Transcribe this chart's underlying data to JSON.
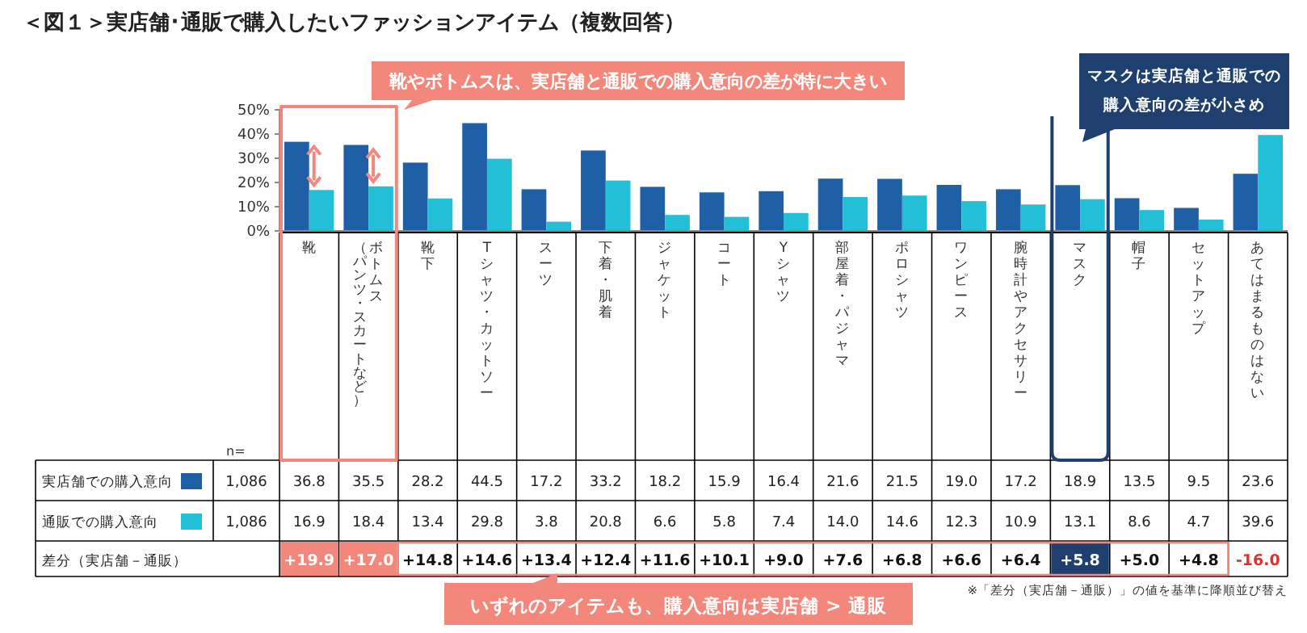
{
  "chart_data": {
    "type": "bar",
    "title": "＜図１＞実店舗･通販で購入したいファッションアイテム（複数回答）",
    "categories": [
      "靴",
      "ボトムス（パンツ・スカートなど）",
      "靴下",
      "Tシャツ・カットソー",
      "スーツ",
      "下着・肌着",
      "ジャケット",
      "コート",
      "Yシャツ",
      "部屋着・パジャマ",
      "ポロシャツ",
      "ワンピース",
      "腕時計やアクセサリー",
      "マスク",
      "帽子",
      "セットアップ",
      "あてはまるものはない"
    ],
    "series": [
      {
        "name": "実店舗での購入意向",
        "color": "#1f5fa6",
        "values": [
          36.8,
          35.5,
          28.2,
          44.5,
          17.2,
          33.2,
          18.2,
          15.9,
          16.4,
          21.6,
          21.5,
          19.0,
          17.2,
          18.9,
          13.5,
          9.5,
          23.6
        ],
        "value_labels": [
          "36.8",
          "35.5",
          "28.2",
          "44.5",
          "17.2",
          "33.2",
          "18.2",
          "15.9",
          "16.4",
          "21.6",
          "21.5",
          "19.0",
          "17.2",
          "18.9",
          "13.5",
          "9.5",
          "23.6"
        ]
      },
      {
        "name": "通販での購入意向",
        "color": "#22bfd6",
        "values": [
          16.9,
          18.4,
          13.4,
          29.8,
          3.8,
          20.8,
          6.6,
          5.8,
          7.4,
          14.0,
          14.6,
          12.3,
          10.9,
          13.1,
          8.6,
          4.7,
          39.6
        ],
        "value_labels": [
          "16.9",
          "18.4",
          "13.4",
          "29.8",
          "3.8",
          "20.8",
          "6.6",
          "5.8",
          "7.4",
          "14.0",
          "14.6",
          "12.3",
          "10.9",
          "13.1",
          "8.6",
          "4.7",
          "39.6"
        ]
      }
    ],
    "ylim": [
      0,
      50
    ],
    "yticks": [
      {
        "value": 0,
        "label": "0%"
      },
      {
        "value": 10,
        "label": "10%"
      },
      {
        "value": 20,
        "label": "20%"
      },
      {
        "value": 30,
        "label": "30%"
      },
      {
        "value": 40,
        "label": "40%"
      },
      {
        "value": 50,
        "label": "50%"
      }
    ],
    "legend": "bottom",
    "annotations": [
      "靴やボトムスは、実店舗と通販での購入意向の差が特に大きい",
      "マスクは実店舗と通販での購入意向の差が小さめ",
      "いずれのアイテムも、購入意向は実店舗 > 通販",
      "※「差分（実店舗－通販）」の値を基準に降順並び替え",
      "n=",
      "差分（実店舗－通販）",
      "1,086",
      "1,086",
      "+19.9",
      "+17.0",
      "+14.8",
      "+14.6",
      "+13.4",
      "+12.4",
      "+11.6",
      "+10.1",
      "+9.0",
      "+7.6",
      "+6.8",
      "+6.6",
      "+6.4",
      "+5.8",
      "+5.0",
      "+4.8",
      "-16.0"
    ]
  }
}
